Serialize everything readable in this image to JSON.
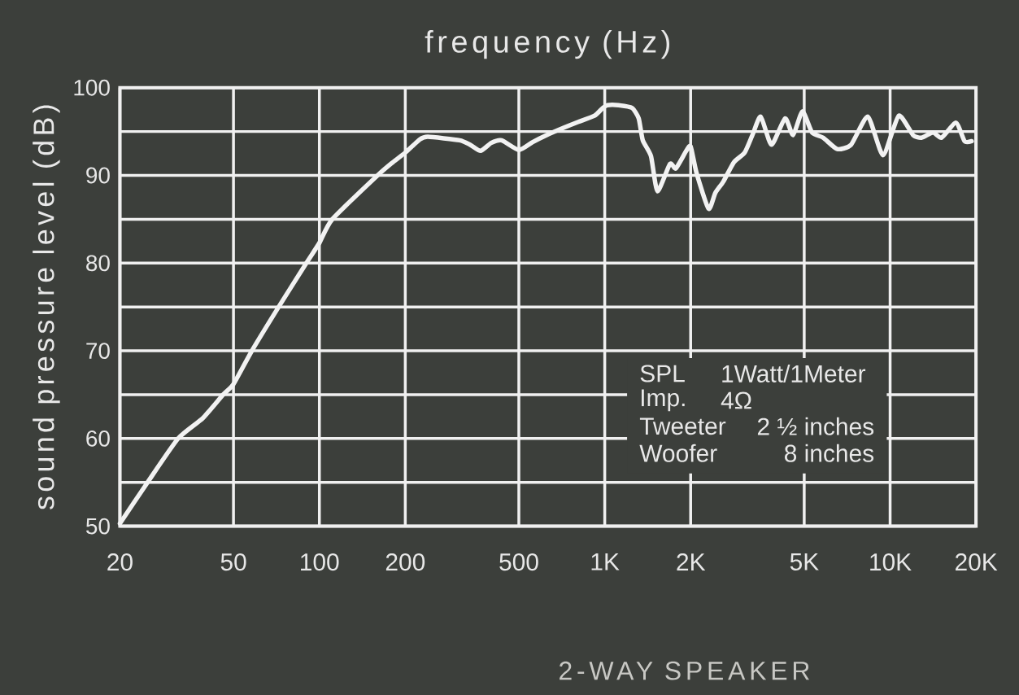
{
  "chart_data": {
    "type": "line",
    "xlabel": "frequency (Hz)",
    "ylabel": "sound pressure level (dB)",
    "x": [
      20,
      25,
      32,
      39,
      46,
      50,
      58,
      72,
      90,
      100,
      111,
      160,
      181,
      200,
      225,
      240,
      310,
      337,
      367,
      400,
      435,
      500,
      559,
      626,
      726,
      808,
      921,
      985,
      1022,
      1116,
      1245,
      1315,
      1359,
      1452,
      1530,
      1692,
      1776,
      1931,
      2000,
      2100,
      2311,
      2440,
      2604,
      2836,
      3093,
      3302,
      3522,
      3840,
      4284,
      4571,
      4930,
      5325,
      5827,
      6523,
      7300,
      8355,
      9446,
      10717,
      12031,
      12893,
      14141,
      15151,
      17019,
      18237,
      19312
    ],
    "values": [
      50.3,
      55,
      60,
      62.3,
      65,
      66.2,
      70,
      75,
      80,
      82.3,
      85,
      90,
      91.5,
      92.6,
      94.1,
      94.4,
      94.0,
      93.5,
      92.8,
      93.7,
      94.0,
      92.9,
      93.8,
      94.6,
      95.5,
      96.1,
      96.8,
      97.7,
      98.0,
      98.0,
      97.7,
      96.5,
      94.0,
      92.2,
      88.2,
      91.3,
      90.8,
      92.8,
      93.3,
      90.2,
      86.2,
      88.0,
      89.3,
      91.5,
      92.6,
      94.7,
      96.7,
      93.5,
      96.5,
      94.6,
      97.3,
      94.9,
      94.3,
      93.0,
      93.5,
      96.7,
      92.3,
      96.8,
      94.6,
      94.3,
      94.9,
      94.3,
      96.0,
      93.9,
      93.9
    ],
    "color": "#f2f2f2",
    "log": "x",
    "grid": true,
    "xlim": [
      20,
      20000
    ],
    "ylim": [
      50,
      100
    ],
    "xticks": [
      20,
      50,
      100,
      200,
      500,
      {
        "value": 1000,
        "label": "1K"
      },
      {
        "value": 2000,
        "label": "2K"
      },
      {
        "value": 5000,
        "label": "5K"
      },
      {
        "value": 10000,
        "label": "10K"
      },
      {
        "value": 20000,
        "label": "20K"
      }
    ],
    "yticks": [
      50,
      {
        "value": 55,
        "label": null
      },
      60,
      {
        "value": 65,
        "label": null
      },
      70,
      {
        "value": 75,
        "label": null
      },
      80,
      {
        "value": 85,
        "label": null
      },
      90,
      {
        "value": 95,
        "label": null
      },
      100
    ],
    "annotations": [
      "SPL",
      "1Watt/1Meter",
      "Imp.",
      "4Ω",
      "Tweeter",
      "2 ½ inches",
      "Woofer",
      "8 inches",
      "2-WAY SPEAKER"
    ]
  }
}
